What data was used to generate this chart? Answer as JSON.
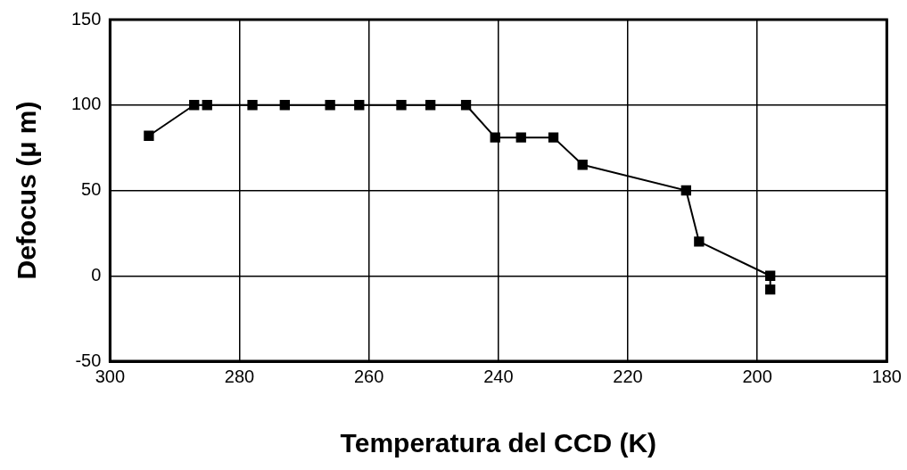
{
  "chart_data": {
    "type": "line",
    "xlabel": "Temperatura del CCD (K)",
    "ylabel": "Defocus (μ m)",
    "x": [
      294,
      287,
      285,
      278,
      273,
      266,
      261.5,
      255,
      250.5,
      245,
      240.5,
      236.5,
      231.5,
      227,
      211,
      209,
      198,
      198
    ],
    "series": [
      {
        "color": "#000000",
        "values": [
          82,
          100,
          100,
          100,
          100,
          100,
          100,
          100,
          100,
          100,
          81,
          81,
          81,
          65,
          50,
          20,
          0,
          -8
        ]
      }
    ],
    "xlim": [
      300,
      180
    ],
    "xticks": [
      300,
      280,
      260,
      240,
      220,
      200,
      180
    ],
    "ylim": [
      -50,
      150
    ],
    "yticks": [
      -50,
      0,
      50,
      100,
      150
    ],
    "grid": true,
    "legend": false,
    "marker": "square",
    "line_style": "solid"
  }
}
